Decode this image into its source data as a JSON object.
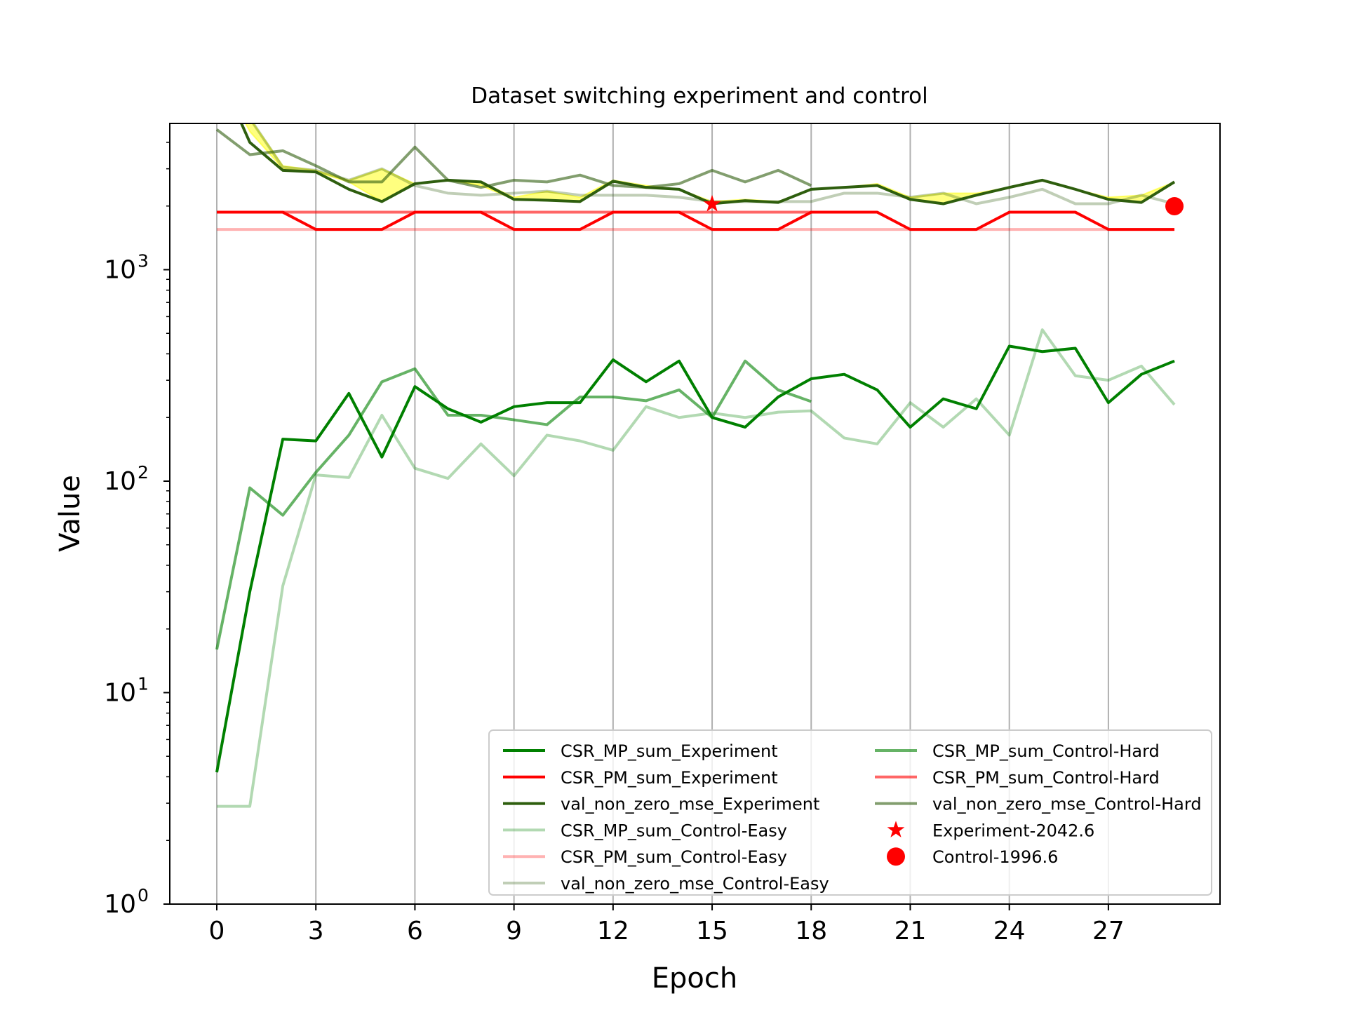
{
  "chart_data": {
    "type": "line",
    "title": "Dataset switching experiment and control",
    "xlabel": "Epoch",
    "ylabel": "Value",
    "yscale": "log",
    "xlim": [
      -1.4,
      31.4
    ],
    "ylim": [
      1,
      5000
    ],
    "x_ticks": [
      0,
      3,
      6,
      9,
      12,
      15,
      18,
      21,
      24,
      27
    ],
    "y_ticks": [
      {
        "value": 1,
        "base": "10",
        "exp": "0"
      },
      {
        "value": 10,
        "base": "10",
        "exp": "1"
      },
      {
        "value": 100,
        "base": "10",
        "exp": "2"
      },
      {
        "value": 1000,
        "base": "10",
        "exp": "3"
      }
    ],
    "grid": "x-only",
    "legend_position": "lower-right",
    "band": {
      "color": "#ffff00",
      "x": [
        0,
        1,
        2,
        3,
        4,
        5,
        6,
        7,
        8,
        9,
        10,
        11,
        12,
        13,
        14,
        15,
        16,
        17,
        18,
        19,
        20,
        21,
        22,
        23,
        24,
        25,
        26,
        27,
        28,
        29
      ],
      "lower": [
        9000,
        4500,
        3000,
        2900,
        2600,
        2100,
        2550,
        2650,
        2500,
        2150,
        2120,
        2100,
        2600,
        2450,
        2400,
        2050,
        2120,
        2080,
        2400,
        2450,
        2500,
        2150,
        2050,
        2250,
        2450,
        2650,
        2400,
        2150,
        2080,
        2600
      ],
      "upper": [
        9000,
        5200,
        3100,
        2950,
        2650,
        3000,
        2550,
        2650,
        2600,
        2200,
        2350,
        2200,
        2650,
        2500,
        2400,
        2100,
        2150,
        2100,
        2400,
        2450,
        2550,
        2200,
        2300,
        2300,
        2450,
        2650,
        2400,
        2200,
        2250,
        2600
      ]
    },
    "series": [
      {
        "name": "CSR_MP_sum_Experiment",
        "color": "#008000",
        "opacity": 1.0,
        "x": [
          0,
          1,
          2,
          3,
          4,
          5,
          6,
          7,
          8,
          9,
          10,
          11,
          12,
          13,
          14,
          15,
          16,
          17,
          18,
          19,
          20,
          21,
          22,
          23,
          24,
          25,
          26,
          27,
          28,
          29
        ],
        "values": [
          4.2,
          30,
          158,
          155,
          260,
          130,
          280,
          220,
          190,
          225,
          235,
          235,
          375,
          295,
          370,
          200,
          180,
          250,
          305,
          320,
          270,
          180,
          245,
          220,
          435,
          410,
          425,
          235,
          320,
          370
        ]
      },
      {
        "name": "CSR_PM_sum_Experiment",
        "color": "#ff0000",
        "opacity": 1.0,
        "x": [
          0,
          1,
          2,
          3,
          4,
          5,
          6,
          7,
          8,
          9,
          10,
          11,
          12,
          13,
          14,
          15,
          16,
          17,
          18,
          19,
          20,
          21,
          22,
          23,
          24,
          25,
          26,
          27,
          28,
          29
        ],
        "values": [
          1870,
          1870,
          1870,
          1550,
          1550,
          1550,
          1870,
          1870,
          1870,
          1550,
          1550,
          1550,
          1870,
          1870,
          1870,
          1550,
          1550,
          1550,
          1870,
          1870,
          1870,
          1550,
          1550,
          1550,
          1870,
          1870,
          1870,
          1550,
          1550,
          1550
        ]
      },
      {
        "name": "val_non_zero_mse_Experiment",
        "color": "#2e5e0e",
        "opacity": 1.0,
        "x": [
          0,
          1,
          2,
          3,
          4,
          5,
          6,
          7,
          8,
          9,
          10,
          11,
          12,
          13,
          14,
          15,
          16,
          17,
          18,
          19,
          20,
          21,
          22,
          23,
          24,
          25,
          26,
          27,
          28,
          29
        ],
        "values": [
          9000,
          4000,
          2950,
          2900,
          2400,
          2100,
          2550,
          2650,
          2600,
          2150,
          2130,
          2100,
          2620,
          2450,
          2400,
          2050,
          2120,
          2080,
          2400,
          2450,
          2500,
          2150,
          2050,
          2250,
          2450,
          2650,
          2400,
          2150,
          2080,
          2600
        ]
      },
      {
        "name": "CSR_MP_sum_Control-Easy",
        "color": "#008000",
        "opacity": 0.3,
        "x": [
          0,
          1,
          2,
          3,
          4,
          5,
          6,
          7,
          8,
          9,
          10,
          11,
          12,
          13,
          14,
          15,
          16,
          17,
          18,
          19,
          20,
          21,
          22,
          23,
          24,
          25,
          26,
          27,
          28,
          29
        ],
        "values": [
          2.9,
          2.9,
          32,
          107,
          104,
          205,
          115,
          103,
          150,
          106,
          165,
          155,
          140,
          225,
          200,
          210,
          200,
          212,
          215,
          160,
          150,
          235,
          180,
          245,
          165,
          520,
          315,
          300,
          350,
          230
        ]
      },
      {
        "name": "CSR_PM_sum_Control-Easy",
        "color": "#ff0000",
        "opacity": 0.3,
        "x": [
          0,
          29
        ],
        "values": [
          1550,
          1550
        ]
      },
      {
        "name": "val_non_zero_mse_Control-Easy",
        "color": "#2e5e0e",
        "opacity": 0.3,
        "x": [
          0,
          1,
          2,
          3,
          4,
          5,
          6,
          7,
          8,
          9,
          10,
          11,
          12,
          13,
          14,
          15,
          16,
          17,
          18,
          19,
          20,
          21,
          22,
          23,
          24,
          25,
          26,
          27,
          28,
          29
        ],
        "values": [
          9000,
          5200,
          3050,
          2950,
          2650,
          3000,
          2500,
          2300,
          2250,
          2300,
          2350,
          2250,
          2250,
          2250,
          2200,
          2100,
          2100,
          2100,
          2100,
          2300,
          2300,
          2200,
          2300,
          2050,
          2200,
          2400,
          2050,
          2050,
          2250,
          2050
        ]
      },
      {
        "name": "CSR_MP_sum_Control-Hard",
        "color": "#008000",
        "opacity": 0.6,
        "x": [
          0,
          1,
          2,
          3,
          4,
          5,
          6,
          7,
          8,
          9,
          10,
          11,
          12,
          13,
          14,
          15,
          16,
          17,
          18
        ],
        "values": [
          16,
          93,
          69,
          110,
          165,
          295,
          340,
          205,
          205,
          195,
          185,
          250,
          250,
          240,
          270,
          200,
          370,
          270,
          238
        ]
      },
      {
        "name": "CSR_PM_sum_Control-Hard",
        "color": "#ff0000",
        "opacity": 0.6,
        "x": [
          0,
          18
        ],
        "values": [
          1870,
          1870
        ]
      },
      {
        "name": "val_non_zero_mse_Control-Hard",
        "color": "#2e5e0e",
        "opacity": 0.6,
        "x": [
          0,
          1,
          2,
          3,
          4,
          5,
          6,
          7,
          8,
          9,
          10,
          11,
          12,
          13,
          14,
          15,
          16,
          17,
          18
        ],
        "values": [
          4600,
          3500,
          3650,
          3100,
          2600,
          2600,
          3800,
          2650,
          2450,
          2650,
          2600,
          2800,
          2500,
          2450,
          2550,
          2950,
          2600,
          2950,
          2500
        ]
      }
    ],
    "markers": [
      {
        "name": "Experiment-2042.6",
        "shape": "star",
        "color": "#ff0000",
        "x": 15,
        "value": 2042.6
      },
      {
        "name": "Control-1996.6",
        "shape": "circle",
        "color": "#ff0000",
        "x": 29,
        "value": 1996.6
      }
    ]
  }
}
